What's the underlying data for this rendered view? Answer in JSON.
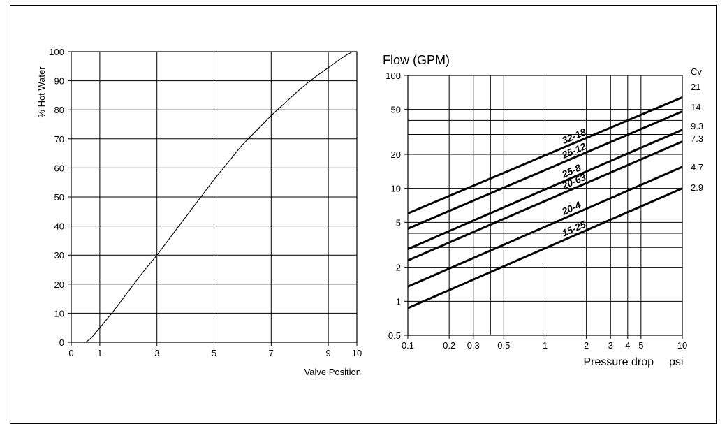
{
  "chart_data": [
    {
      "type": "line",
      "title": "",
      "xlabel": "Valve Position",
      "ylabel": "% Hot  Water",
      "xlim": [
        0,
        10
      ],
      "ylim": [
        0,
        100
      ],
      "x_ticks": [
        "0",
        "1",
        "3",
        "5",
        "7",
        "9",
        "10"
      ],
      "y_ticks": [
        "0",
        "10",
        "20",
        "30",
        "40",
        "50",
        "60",
        "70",
        "80",
        "90",
        "100"
      ],
      "grid": true,
      "series": [
        {
          "x": [
            0.5,
            0.7,
            1.0,
            1.5,
            2.0,
            2.5,
            3.0,
            3.5,
            4.0,
            4.5,
            5.0,
            5.5,
            6.0,
            6.5,
            7.0,
            7.5,
            8.0,
            8.5,
            9.0,
            9.5,
            9.85
          ],
          "values": [
            0,
            1.5,
            5,
            11,
            17.5,
            24,
            30,
            36.5,
            43,
            49.5,
            56,
            62,
            68,
            73,
            78,
            82.5,
            87,
            91,
            94.5,
            98,
            100
          ]
        }
      ]
    },
    {
      "type": "line",
      "title": "Flow (GPM)",
      "xlabel": "Pressure drop",
      "x_unit": "psi",
      "xscale": "log",
      "yscale": "log",
      "xlim": [
        0.1,
        10
      ],
      "ylim": [
        0.5,
        100
      ],
      "x_ticks": [
        "0.1",
        "0.2",
        "0.3",
        "0.5",
        "1",
        "2",
        "3",
        "4",
        "5",
        "10"
      ],
      "y_ticks": [
        "0.5",
        "1",
        "2",
        "5",
        "10",
        "20",
        "50",
        "100"
      ],
      "cv_header": "Cv",
      "grid": true,
      "series": [
        {
          "name": "32-18",
          "cv": "21",
          "x": [
            0.1,
            10
          ],
          "values": [
            6,
            64
          ]
        },
        {
          "name": "25-12",
          "cv": "14",
          "x": [
            0.1,
            10
          ],
          "values": [
            4.4,
            48
          ]
        },
        {
          "name": "25-8",
          "cv": "9.3",
          "x": [
            0.1,
            10
          ],
          "values": [
            2.9,
            33
          ]
        },
        {
          "name": "20-63",
          "cv": "7.3",
          "x": [
            0.1,
            10
          ],
          "values": [
            2.3,
            26
          ]
        },
        {
          "name": "20-4",
          "cv": "4.7",
          "x": [
            0.1,
            10
          ],
          "values": [
            1.35,
            15.5
          ]
        },
        {
          "name": "15-25",
          "cv": "2.9",
          "x": [
            0.1,
            10
          ],
          "values": [
            0.87,
            10
          ]
        }
      ]
    }
  ]
}
